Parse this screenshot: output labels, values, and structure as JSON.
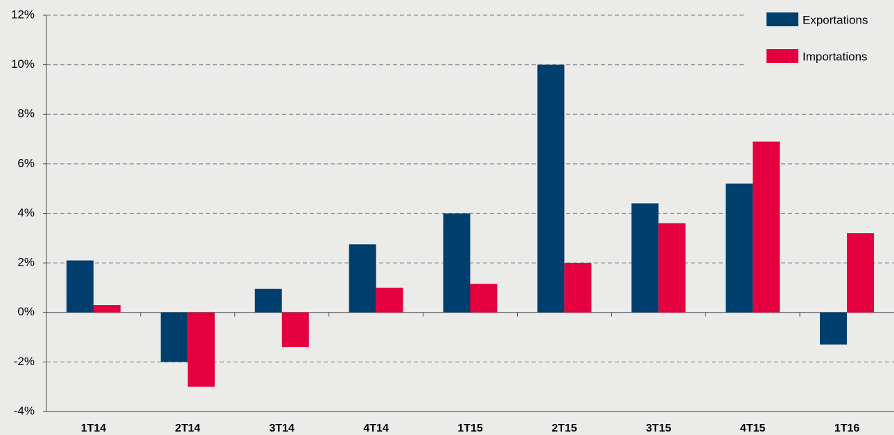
{
  "chart_data": {
    "type": "bar",
    "categories": [
      "1T14",
      "2T14",
      "3T14",
      "4T14",
      "1T15",
      "2T15",
      "3T15",
      "4T15",
      "1T16"
    ],
    "series": [
      {
        "name": "Exportations",
        "color": "#003f6d",
        "values": [
          2.1,
          -2.0,
          0.95,
          2.75,
          4.0,
          10.0,
          4.4,
          5.2,
          -1.3
        ]
      },
      {
        "name": "Importations",
        "color": "#e4003f",
        "values": [
          0.3,
          -3.0,
          -1.4,
          1.0,
          1.15,
          2.0,
          3.6,
          6.9,
          3.2
        ]
      }
    ],
    "ylim": [
      -4,
      12
    ],
    "yticks": [
      {
        "value": -4,
        "label": "-4%"
      },
      {
        "value": -2,
        "label": "-2%"
      },
      {
        "value": 0,
        "label": "0%"
      },
      {
        "value": 2,
        "label": "2%"
      },
      {
        "value": 4,
        "label": "4%"
      },
      {
        "value": 6,
        "label": "6%"
      },
      {
        "value": 8,
        "label": "8%"
      },
      {
        "value": 10,
        "label": "10%"
      },
      {
        "value": 12,
        "label": "12%"
      }
    ],
    "grid": true,
    "legend": "top-right"
  }
}
